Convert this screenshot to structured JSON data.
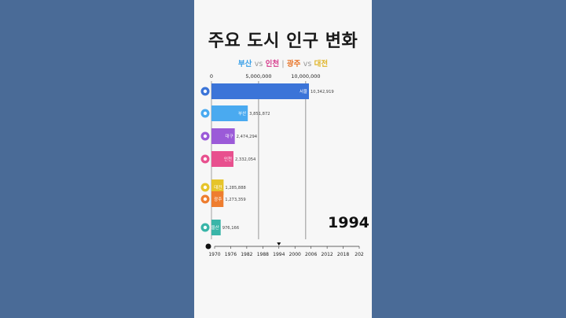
{
  "title": "주요 도시 인구 변화",
  "subtitle": {
    "busan": "부산",
    "vs1": "vs",
    "incheon": "인천",
    "sep": "|",
    "gwangju": "광주",
    "vs2": "vs",
    "daejeon": "대전"
  },
  "colors": {
    "busan": "#3aa0e8",
    "incheon": "#d63a8c",
    "gwangju": "#e8762a",
    "daejeon": "#e0b52a",
    "background": "#4a6b97",
    "panel": "#f7f7f7"
  },
  "current_year": "1994",
  "chart_data": {
    "type": "bar",
    "orientation": "horizontal",
    "xlim": [
      0,
      10342919
    ],
    "x_ticks": [
      {
        "value": 0,
        "label": "0"
      },
      {
        "value": 5000000,
        "label": "5,000,000"
      },
      {
        "value": 10000000,
        "label": "10,000,000"
      }
    ],
    "bars": [
      {
        "city": "서울",
        "value": 10342919,
        "value_label": "10,342,919",
        "color": "#3b74d8",
        "icon": "seoul-logo-icon"
      },
      {
        "city": "부산",
        "value": 3851872,
        "value_label": "3,851,872",
        "color": "#4aaaf0",
        "icon": "busan-logo-icon"
      },
      {
        "city": "대구",
        "value": 2474294,
        "value_label": "2,474,294",
        "color": "#9b5ad8",
        "icon": "daegu-logo-icon"
      },
      {
        "city": "인천",
        "value": 2332054,
        "value_label": "2,332,054",
        "color": "#e8508e",
        "icon": "incheon-logo-icon"
      },
      {
        "city": "대전",
        "value": 1285888,
        "value_label": "1,285,888",
        "color": "#e6c42a",
        "icon": "daejeon-logo-icon"
      },
      {
        "city": "광주",
        "value": 1273359,
        "value_label": "1,273,359",
        "color": "#ee7d2f",
        "icon": "gwangju-logo-icon"
      },
      {
        "city": "울산",
        "value": 976166,
        "value_label": "976,166",
        "color": "#39b5a8",
        "icon": "ulsan-logo-icon"
      }
    ],
    "timeline": {
      "start": 1970,
      "end": 2024,
      "current": 1994,
      "tick_labels": [
        "1970",
        "1976",
        "1982",
        "1988",
        "1994",
        "2000",
        "2006",
        "2012",
        "2018",
        "202"
      ]
    }
  }
}
